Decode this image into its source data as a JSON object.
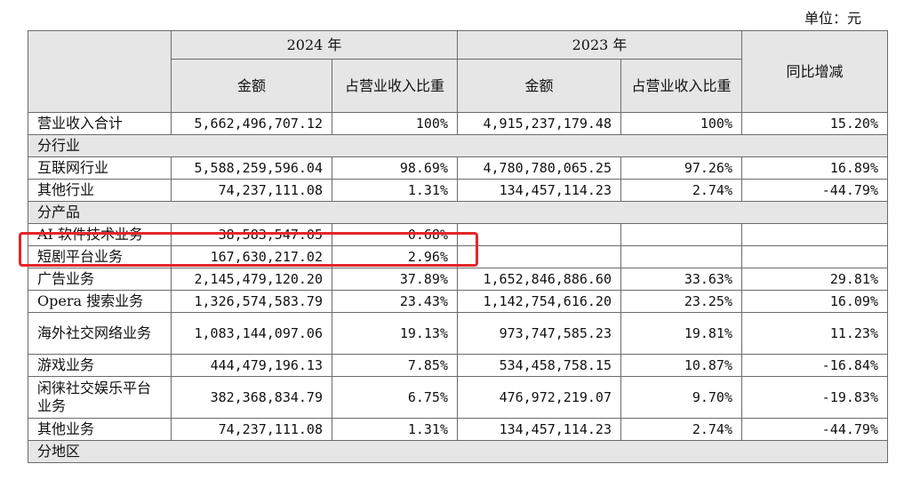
{
  "unit_label": "单位：元",
  "header": {
    "year_2024": "2024 年",
    "year_2023": "2023 年",
    "amount": "金额",
    "share": "占营业收入比重",
    "yoy": "同比增减"
  },
  "rows": [
    {
      "type": "data",
      "label": "营业收入合计",
      "a24": "5,662,496,707.12",
      "p24": "100%",
      "a23": "4,915,237,179.48",
      "p23": "100%",
      "yoy": "15.20%"
    },
    {
      "type": "section",
      "label": "分行业"
    },
    {
      "type": "data",
      "label": "互联网行业",
      "a24": "5,588,259,596.04",
      "p24": "98.69%",
      "a23": "4,780,780,065.25",
      "p23": "97.26%",
      "yoy": "16.89%"
    },
    {
      "type": "data",
      "label": "其他行业",
      "a24": "74,237,111.08",
      "p24": "1.31%",
      "a23": "134,457,114.23",
      "p23": "2.74%",
      "yoy": "-44.79%"
    },
    {
      "type": "section",
      "label": "分产品"
    },
    {
      "type": "data",
      "label": "AI 软件技术业务",
      "a24": "38,583,547.05",
      "p24": "0.68%",
      "a23": "",
      "p23": "",
      "yoy": ""
    },
    {
      "type": "data",
      "label": "短剧平台业务",
      "a24": "167,630,217.02",
      "p24": "2.96%",
      "a23": "",
      "p23": "",
      "yoy": ""
    },
    {
      "type": "data",
      "label": "广告业务",
      "a24": "2,145,479,120.20",
      "p24": "37.89%",
      "a23": "1,652,846,886.60",
      "p23": "33.63%",
      "yoy": "29.81%"
    },
    {
      "type": "data",
      "label": "Opera 搜索业务",
      "a24": "1,326,574,583.79",
      "p24": "23.43%",
      "a23": "1,142,754,616.20",
      "p23": "23.25%",
      "yoy": "16.09%"
    },
    {
      "type": "data",
      "tall": true,
      "label": "海外社交网络业务",
      "a24": "1,083,144,097.06",
      "p24": "19.13%",
      "a23": "973,747,585.23",
      "p23": "19.81%",
      "yoy": "11.23%"
    },
    {
      "type": "data",
      "label": "游戏业务",
      "a24": "444,479,196.13",
      "p24": "7.85%",
      "a23": "534,458,758.15",
      "p23": "10.87%",
      "yoy": "-16.84%"
    },
    {
      "type": "data",
      "tall": true,
      "label": "闲徕社交娱乐平台业务",
      "a24": "382,368,834.79",
      "p24": "6.75%",
      "a23": "476,972,219.07",
      "p23": "9.70%",
      "yoy": "-19.83%"
    },
    {
      "type": "data",
      "label": "其他业务",
      "a24": "74,237,111.08",
      "p24": "1.31%",
      "a23": "134,457,114.23",
      "p23": "2.74%",
      "yoy": "-44.79%"
    },
    {
      "type": "section",
      "label": "分地区"
    }
  ],
  "highlight_color": "#e4262a"
}
